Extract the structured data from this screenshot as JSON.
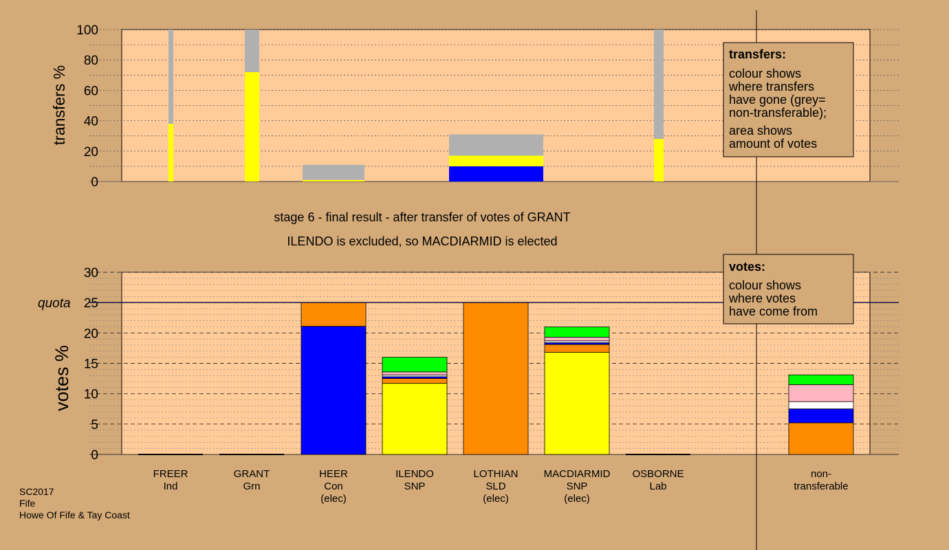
{
  "chart_data": [
    {
      "type": "bar",
      "ylabel": "transfers %",
      "ylim": [
        0,
        100
      ],
      "yticks": [
        0,
        20,
        40,
        60,
        80,
        100
      ],
      "grid": "dotted",
      "bars": [
        {
          "candidate": "FREER",
          "segments": [
            {
              "value": 38,
              "color": "#ffff00"
            },
            {
              "value": 62,
              "color": "#b0b0b0"
            }
          ]
        },
        {
          "candidate": "GRANT",
          "segments": [
            {
              "value": 72,
              "color": "#ffff00"
            },
            {
              "value": 28,
              "color": "#b0b0b0"
            }
          ]
        },
        {
          "candidate": "HEER",
          "segments": [
            {
              "value": 1,
              "color": "#ffff00"
            },
            {
              "value": 10,
              "color": "#b0b0b0"
            }
          ]
        },
        {
          "candidate": "LOTHIAN",
          "segments": [
            {
              "value": 10,
              "color": "#0000ff"
            },
            {
              "value": 7,
              "color": "#ffff00"
            },
            {
              "value": 14,
              "color": "#b0b0b0"
            }
          ]
        },
        {
          "candidate": "OSBORNE",
          "segments": [
            {
              "value": 28,
              "color": "#ffff00"
            },
            {
              "value": 72,
              "color": "#b0b0b0"
            }
          ]
        }
      ]
    },
    {
      "type": "bar",
      "ylabel": "votes %",
      "ylim": [
        0,
        30
      ],
      "yticks": [
        0,
        5,
        10,
        15,
        20,
        25,
        30
      ],
      "quota": 25,
      "quota_label": "quota",
      "grid": "dashed",
      "candidates": [
        {
          "name": "FREER",
          "party": "Ind",
          "status": "",
          "segments": []
        },
        {
          "name": "GRANT",
          "party": "Grn",
          "status": "",
          "segments": []
        },
        {
          "name": "HEER",
          "party": "Con",
          "status": "(elec)",
          "segments": [
            {
              "value": 21.1,
              "color": "#0000ff"
            },
            {
              "value": 3.9,
              "color": "#ff8c00"
            }
          ]
        },
        {
          "name": "ILENDO",
          "party": "SNP",
          "status": "",
          "segments": [
            {
              "value": 11.7,
              "color": "#ffff00"
            },
            {
              "value": 0.8,
              "color": "#ff8c00"
            },
            {
              "value": 0.3,
              "color": "#0000ff"
            },
            {
              "value": 0.3,
              "color": "#ffffff"
            },
            {
              "value": 0.5,
              "color": "#ffb6c1"
            },
            {
              "value": 2.4,
              "color": "#00ff00"
            }
          ]
        },
        {
          "name": "LOTHIAN",
          "party": "SLD",
          "status": "(elec)",
          "segments": [
            {
              "value": 25,
              "color": "#ff8c00"
            }
          ]
        },
        {
          "name": "MACDIARMID",
          "party": "SNP",
          "status": "(elec)",
          "segments": [
            {
              "value": 16.8,
              "color": "#ffff00"
            },
            {
              "value": 1.3,
              "color": "#ff8c00"
            },
            {
              "value": 0.3,
              "color": "#0000ff"
            },
            {
              "value": 0.3,
              "color": "#ffffff"
            },
            {
              "value": 0.6,
              "color": "#ffb6c1"
            },
            {
              "value": 1.7,
              "color": "#00ff00"
            }
          ]
        },
        {
          "name": "OSBORNE",
          "party": "Lab",
          "status": "",
          "segments": []
        }
      ],
      "nontransferable": {
        "label_line1": "non-",
        "label_line2": "transferable",
        "segments": [
          {
            "value": 5.2,
            "color": "#ff8c00"
          },
          {
            "value": 2.3,
            "color": "#0000ff"
          },
          {
            "value": 1.2,
            "color": "#ffffff"
          },
          {
            "value": 2.8,
            "color": "#ffb6c1"
          },
          {
            "value": 1.6,
            "color": "#00ff00"
          }
        ]
      }
    }
  ],
  "stage_line1": "stage 6 - final result - after transfer of votes of GRANT",
  "stage_line2": "ILENDO is excluded, so MACDIARMID is elected",
  "legend_transfers": {
    "title": "transfers:",
    "lines": [
      "colour shows",
      "where transfers",
      "have gone (grey=",
      "non-transferable);",
      "area shows",
      "amount of votes"
    ]
  },
  "legend_votes": {
    "title": "votes:",
    "lines": [
      "colour shows",
      "where votes",
      "have come from"
    ]
  },
  "footer": [
    "SC2017",
    "Fife",
    "Howe Of Fife & Tay Coast"
  ],
  "colors": {
    "background": "#d4aa78",
    "plot": "#ffcc99"
  }
}
